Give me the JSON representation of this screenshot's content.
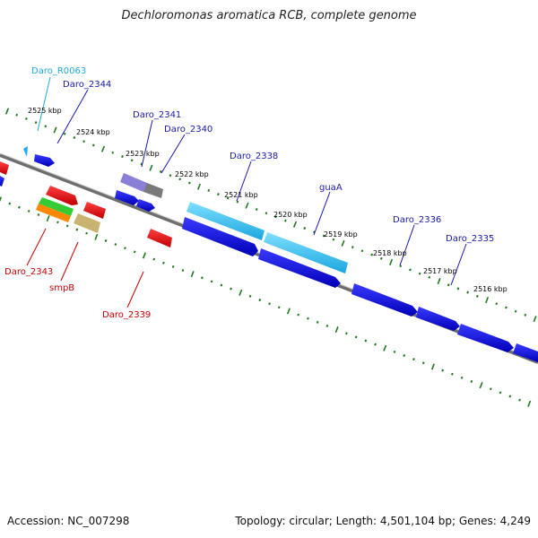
{
  "title": "Dechloromonas aromatica RCB, complete genome",
  "footer": {
    "accession": "Accession: NC_007298",
    "summary": "Topology: circular; Length: 4,501,104 bp; Genes: 4,249"
  },
  "colors": {
    "backbone": "#7a7a7a",
    "tick": "#1f7a1f",
    "forward_gene": "#0000ee",
    "reverse_gene": "#ee0000",
    "rna_gene": "#22aaee",
    "label_forward": "#1a1aa8",
    "label_reverse": "#cc0000",
    "label_rna": "#22aadd"
  },
  "tick_labels": [
    "2525 kbp",
    "2524 kbp",
    "2523 kbp",
    "2522 kbp",
    "2521 kbp",
    "2520 kbp",
    "2519 kbp",
    "2518 kbp",
    "2517 kbp",
    "2516 kbp"
  ],
  "gene_labels": [
    {
      "name": "Daro_R0063",
      "strand": "rna"
    },
    {
      "name": "Daro_2344",
      "strand": "forward"
    },
    {
      "name": "Daro_2341",
      "strand": "forward"
    },
    {
      "name": "Daro_2340",
      "strand": "forward"
    },
    {
      "name": "Daro_2338",
      "strand": "forward"
    },
    {
      "name": "guaA",
      "strand": "forward"
    },
    {
      "name": "Daro_2336",
      "strand": "forward"
    },
    {
      "name": "Daro_2335",
      "strand": "forward"
    },
    {
      "name": "Daro_2343",
      "strand": "reverse"
    },
    {
      "name": "smpB",
      "strand": "reverse"
    },
    {
      "name": "Daro_2339",
      "strand": "reverse"
    }
  ]
}
